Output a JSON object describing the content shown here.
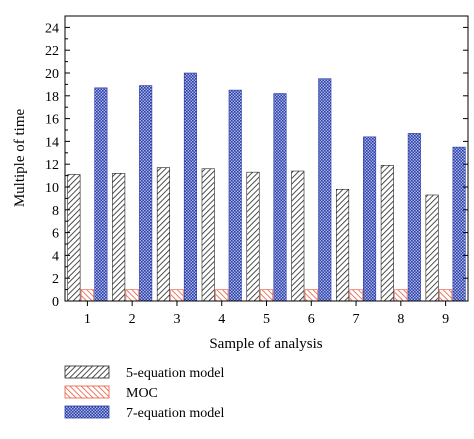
{
  "chart_data": {
    "type": "bar",
    "categories": [
      "1",
      "2",
      "3",
      "4",
      "5",
      "6",
      "7",
      "8",
      "9"
    ],
    "series": [
      {
        "name": "5-equation model",
        "values": [
          11.1,
          11.2,
          11.7,
          11.6,
          11.3,
          11.4,
          9.8,
          11.9,
          9.3
        ],
        "color": "#333333",
        "pattern": "diagonal-hatch"
      },
      {
        "name": "MOC",
        "values": [
          1.0,
          1.0,
          1.0,
          1.0,
          1.0,
          1.0,
          1.0,
          1.0,
          1.0
        ],
        "color": "#e8583c",
        "pattern": "diagonal-hatch-red"
      },
      {
        "name": "7-equation model",
        "values": [
          18.7,
          18.9,
          20.0,
          18.5,
          18.2,
          19.5,
          14.4,
          14.7,
          13.5
        ],
        "color": "#3a4fb0",
        "pattern": "crosshatch-blue"
      }
    ],
    "xlabel": "Sample of analysis",
    "ylabel": "Multiple of time",
    "ylim": [
      0,
      25
    ],
    "yticks": [
      0,
      2,
      4,
      6,
      8,
      10,
      12,
      14,
      16,
      18,
      20,
      22,
      24
    ],
    "grid": false,
    "legend_position": "bottom-left"
  }
}
